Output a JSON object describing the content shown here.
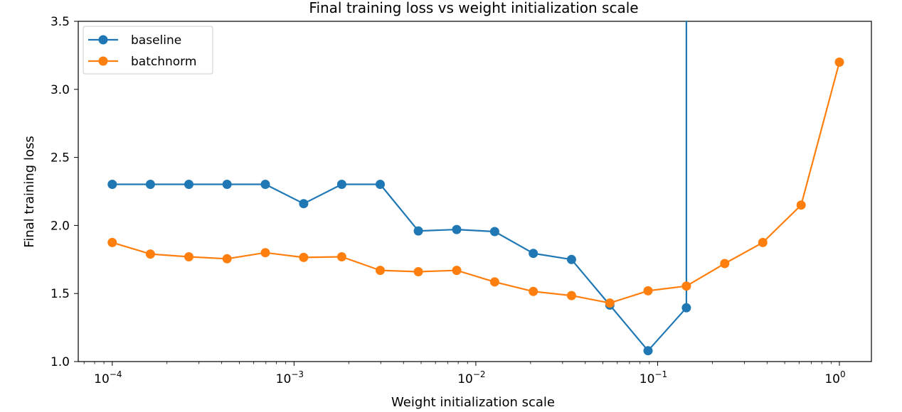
{
  "chart_data": {
    "type": "line",
    "title": "Final training loss vs weight initialization scale",
    "xlabel": "Weight initialization scale",
    "ylabel": "Final training loss",
    "x_scale": "log",
    "xlim": [
      6.5e-05,
      1.5
    ],
    "ylim": [
      1.0,
      3.5
    ],
    "x_ticks": [
      {
        "value": 0.0001,
        "base": "10",
        "exp": "−4"
      },
      {
        "value": 0.001,
        "base": "10",
        "exp": "−3"
      },
      {
        "value": 0.01,
        "base": "10",
        "exp": "−2"
      },
      {
        "value": 0.1,
        "base": "10",
        "exp": "−1"
      },
      {
        "value": 1,
        "base": "10",
        "exp": "0"
      }
    ],
    "y_ticks": [
      {
        "value": 1.0,
        "label": "1.0"
      },
      {
        "value": 1.5,
        "label": "1.5"
      },
      {
        "value": 2.0,
        "label": "2.0"
      },
      {
        "value": 2.5,
        "label": "2.5"
      },
      {
        "value": 3.0,
        "label": "3.0"
      },
      {
        "value": 3.5,
        "label": "3.5"
      }
    ],
    "grid": false,
    "legend_position": "top-left",
    "x": [
      0.0001,
      0.000162,
      0.000264,
      0.000428,
      0.000695,
      0.00113,
      0.00183,
      0.00298,
      0.00483,
      0.00785,
      0.0127,
      0.0207,
      0.0336,
      0.0546,
      0.0886,
      0.144,
      0.234,
      0.379,
      0.616,
      1.0
    ],
    "series": [
      {
        "name": "baseline",
        "color": "#1f77b4",
        "values": [
          2.302,
          2.302,
          2.302,
          2.302,
          2.302,
          2.16,
          2.302,
          2.302,
          1.96,
          1.97,
          1.955,
          1.795,
          1.75,
          1.415,
          1.08,
          1.395,
          null,
          null,
          null,
          null
        ],
        "spike_after_last": true
      },
      {
        "name": "batchnorm",
        "color": "#ff7f0e",
        "values": [
          1.875,
          1.79,
          1.77,
          1.755,
          1.8,
          1.765,
          1.77,
          1.67,
          1.66,
          1.67,
          1.585,
          1.515,
          1.485,
          1.43,
          1.52,
          1.555,
          1.72,
          1.875,
          2.15,
          3.2
        ]
      }
    ]
  }
}
